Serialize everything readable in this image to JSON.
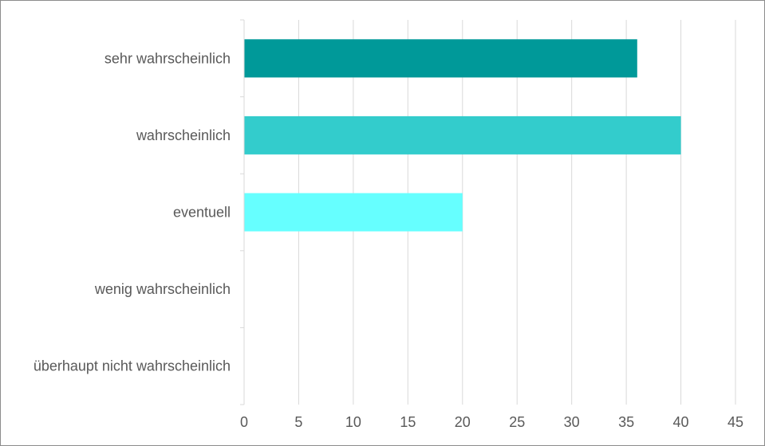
{
  "chart_data": {
    "type": "bar",
    "orientation": "horizontal",
    "title": "",
    "xlabel": "",
    "ylabel": "",
    "categories": [
      "sehr wahrscheinlich",
      "wahrscheinlich",
      "eventuell",
      "wenig wahrscheinlich",
      "überhaupt nicht wahrscheinlich"
    ],
    "values": [
      36,
      40,
      20,
      0,
      0
    ],
    "bar_colors": [
      "#009999",
      "#33CCCC",
      "#66FFFF",
      "#66FFFF",
      "#66FFFF"
    ],
    "xlim": [
      0,
      45
    ],
    "xticks": [
      "0",
      "5",
      "10",
      "15",
      "20",
      "25",
      "30",
      "35",
      "40",
      "45"
    ],
    "grid": "vertical",
    "legend": "none"
  }
}
